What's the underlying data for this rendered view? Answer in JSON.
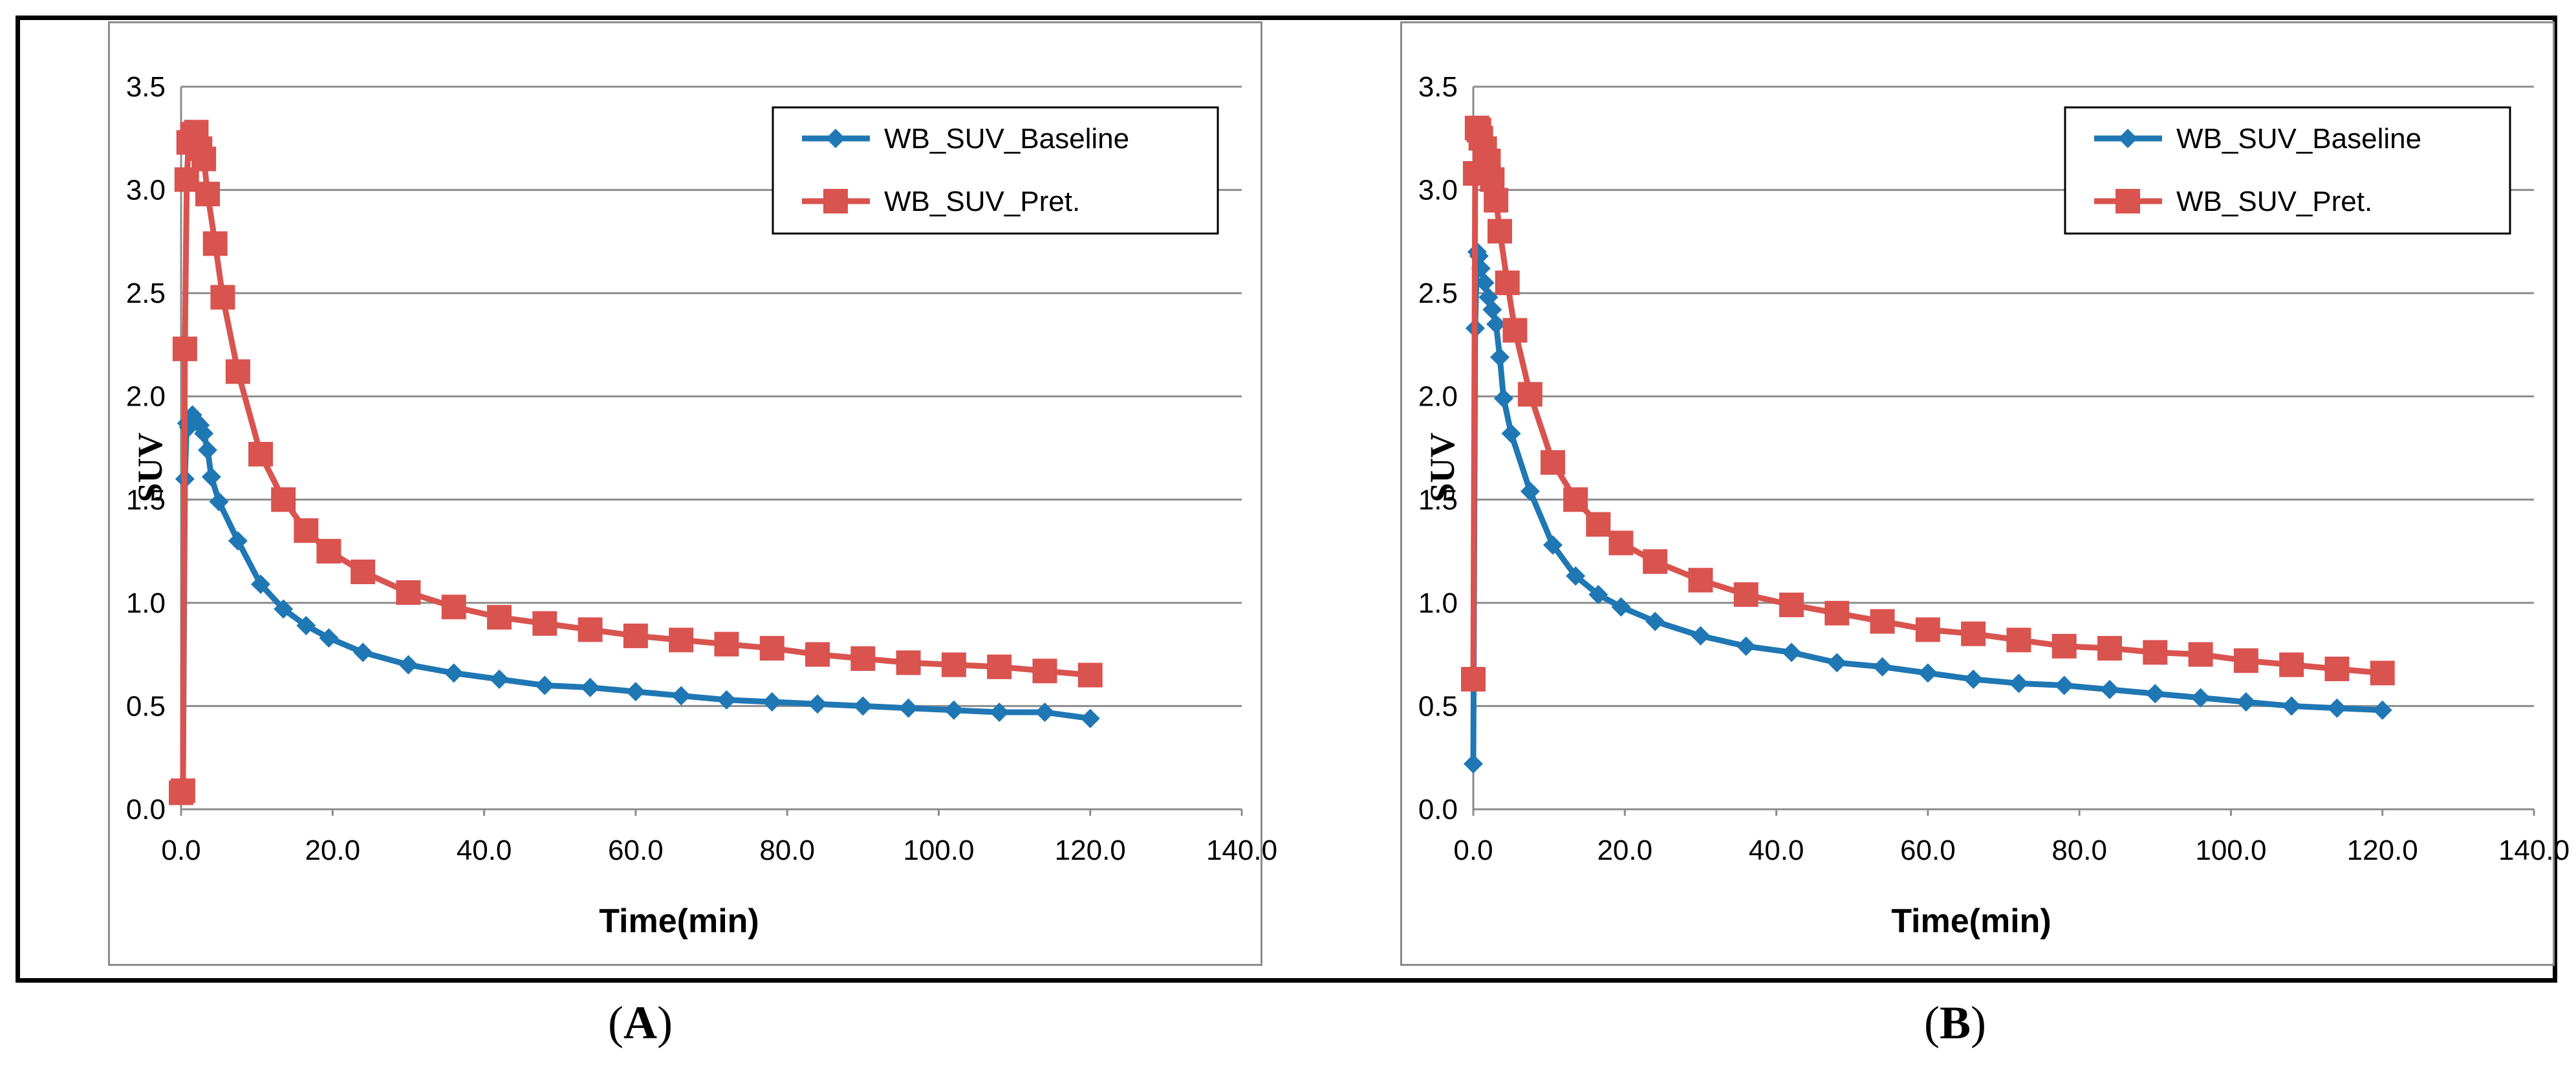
{
  "panels": [
    {
      "letter": "A"
    },
    {
      "letter": "B"
    }
  ],
  "chart_data": [
    {
      "type": "line",
      "panel": "A",
      "xlabel": "Time(min)",
      "ylabel": "SUV",
      "xlim": [
        0,
        140
      ],
      "ylim": [
        0,
        3.5
      ],
      "xticks": [
        "0.0",
        "20.0",
        "40.0",
        "60.0",
        "80.0",
        "100.0",
        "120.0",
        "140.0"
      ],
      "yticks": [
        "0.0",
        "0.5",
        "1.0",
        "1.5",
        "2.0",
        "2.5",
        "3.0",
        "3.5"
      ],
      "grid": "horizontal",
      "legend": "top-right",
      "series": [
        {
          "name": "WB_SUV_Baseline",
          "color": "#1f77b4",
          "marker": "diamond",
          "x": [
            0,
            0.25,
            0.5,
            0.75,
            1.0,
            1.5,
            2.0,
            2.5,
            3.0,
            3.5,
            4.0,
            5.0,
            7.5,
            10.5,
            13.5,
            16.5,
            19.5,
            24,
            30,
            36,
            42,
            48,
            54,
            60,
            66,
            72,
            78,
            84,
            90,
            96,
            102,
            108,
            114,
            120
          ],
          "y": [
            0.1,
            0.12,
            1.6,
            1.87,
            1.85,
            1.91,
            1.88,
            1.86,
            1.82,
            1.74,
            1.61,
            1.49,
            1.3,
            1.09,
            0.97,
            0.89,
            0.83,
            0.76,
            0.7,
            0.66,
            0.63,
            0.6,
            0.59,
            0.57,
            0.55,
            0.53,
            0.52,
            0.51,
            0.5,
            0.49,
            0.48,
            0.47,
            0.47,
            0.44
          ]
        },
        {
          "name": "WB_SUV_Pret.",
          "color": "#d9534f",
          "marker": "square",
          "x": [
            0,
            0.25,
            0.5,
            0.75,
            1.0,
            1.5,
            2.0,
            2.5,
            3.0,
            3.5,
            4.5,
            5.5,
            7.5,
            10.5,
            13.5,
            16.5,
            19.5,
            24,
            30,
            36,
            42,
            48,
            54,
            60,
            66,
            72,
            78,
            84,
            90,
            96,
            102,
            108,
            114,
            120
          ],
          "y": [
            0.08,
            0.09,
            2.23,
            3.05,
            3.23,
            3.27,
            3.28,
            3.2,
            3.15,
            2.98,
            2.74,
            2.48,
            2.12,
            1.72,
            1.5,
            1.35,
            1.25,
            1.15,
            1.05,
            0.98,
            0.93,
            0.9,
            0.87,
            0.84,
            0.82,
            0.8,
            0.78,
            0.75,
            0.73,
            0.71,
            0.7,
            0.69,
            0.67,
            0.65
          ]
        }
      ]
    },
    {
      "type": "line",
      "panel": "B",
      "xlabel": "Time(min)",
      "ylabel": "SUV",
      "xlim": [
        0,
        140
      ],
      "ylim": [
        0,
        3.5
      ],
      "xticks": [
        "0.0",
        "20.0",
        "40.0",
        "60.0",
        "80.0",
        "100.0",
        "120.0",
        "140.0"
      ],
      "yticks": [
        "0.0",
        "0.5",
        "1.0",
        "1.5",
        "2.0",
        "2.5",
        "3.0",
        "3.5"
      ],
      "grid": "horizontal",
      "legend": "top-right",
      "series": [
        {
          "name": "WB_SUV_Baseline",
          "color": "#1f77b4",
          "marker": "diamond",
          "x": [
            0,
            0.25,
            0.5,
            0.75,
            1.0,
            1.5,
            2.0,
            2.5,
            3.0,
            3.5,
            4.0,
            5.0,
            7.5,
            10.5,
            13.5,
            16.5,
            19.5,
            24,
            30,
            36,
            42,
            48,
            54,
            60,
            66,
            72,
            78,
            84,
            90,
            96,
            102,
            108,
            114,
            120
          ],
          "y": [
            0.22,
            2.33,
            2.7,
            2.68,
            2.62,
            2.55,
            2.48,
            2.42,
            2.35,
            2.19,
            1.99,
            1.82,
            1.54,
            1.28,
            1.13,
            1.04,
            0.98,
            0.91,
            0.84,
            0.79,
            0.76,
            0.71,
            0.69,
            0.66,
            0.63,
            0.61,
            0.6,
            0.58,
            0.56,
            0.54,
            0.52,
            0.5,
            0.49,
            0.48
          ]
        },
        {
          "name": "WB_SUV_Pret.",
          "color": "#d9534f",
          "marker": "square",
          "x": [
            0,
            0.25,
            0.5,
            0.75,
            1.0,
            1.5,
            2.0,
            2.5,
            3.0,
            3.5,
            4.5,
            5.5,
            7.5,
            10.5,
            13.5,
            16.5,
            19.5,
            24,
            30,
            36,
            42,
            48,
            54,
            60,
            66,
            72,
            78,
            84,
            90,
            96,
            102,
            108,
            114,
            120
          ],
          "y": [
            0.63,
            3.08,
            3.3,
            3.29,
            3.25,
            3.2,
            3.14,
            3.05,
            2.95,
            2.8,
            2.55,
            2.32,
            2.01,
            1.68,
            1.5,
            1.38,
            1.29,
            1.2,
            1.11,
            1.04,
            0.99,
            0.95,
            0.91,
            0.87,
            0.85,
            0.82,
            0.79,
            0.78,
            0.76,
            0.75,
            0.72,
            0.7,
            0.68,
            0.66
          ]
        }
      ]
    }
  ]
}
